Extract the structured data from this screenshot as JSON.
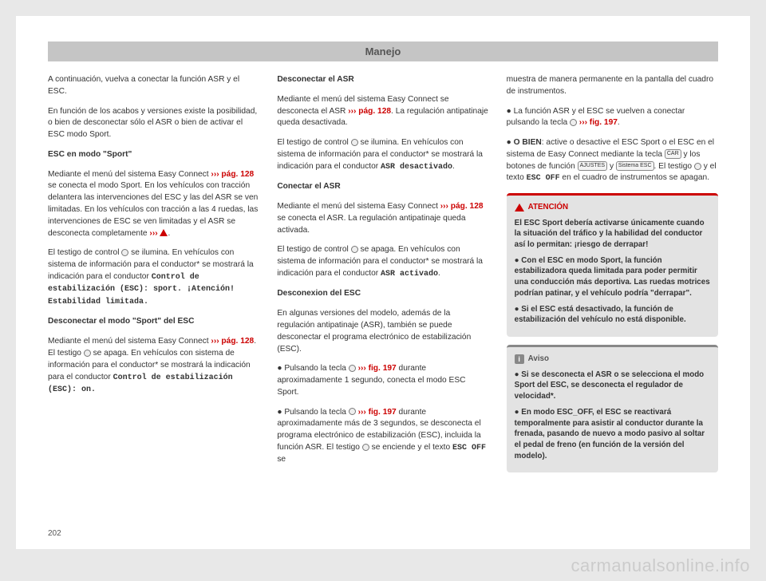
{
  "header": "Manejo",
  "pagenum": "202",
  "watermark": "carmanualsonline.info",
  "col1": {
    "p1": "A continuación, vuelva a conectar la función ASR y el ESC.",
    "p2": "En función de los acabos y versiones existe la posibilidad, o bien de desconectar sólo el ASR o bien de activar el ESC modo Sport.",
    "h1": "ESC en modo \"Sport\"",
    "p3a": "Mediante el menú del sistema Easy Connect ",
    "p3link": "››› pág. 128",
    "p3b": " se conecta el modo Sport. En los vehículos con tracción delantera las intervenciones del ESC y las del ASR se ven limitadas. En los vehículos con tracción a las 4 ruedas, las intervenciones de ESC se ven limitadas y el ASR se desconecta completamente ",
    "p3warn": "›››",
    "p3c": ".",
    "p4a": "El testigo de control ",
    "p4b": " se ilumina. En vehículos con sistema de información para el conductor* se mostrará la indicación para el conductor ",
    "p4mono": "Control de estabilización (ESC): sport. ¡Atención! Estabilidad limitada.",
    "h2": "Desconectar el modo \"Sport\" del ESC",
    "p5a": "Mediante el menú del sistema Easy Connect ",
    "p5link": "››› pág. 128",
    "p5b": ". El testigo ",
    "p5c": " se apaga. En vehículos con sistema de información para el conductor* se mostrará la indicación para el conductor ",
    "p5mono": "Control de estabilización (ESC): on."
  },
  "col2": {
    "h1": "Desconectar el ASR",
    "p1a": "Mediante el menú del sistema Easy Connect se desconecta el ASR ",
    "p1link": "››› pág. 128",
    "p1b": ". La regulación antipatinaje queda desactivada.",
    "p2a": "El testigo de control ",
    "p2b": " se ilumina. En vehículos con sistema de información para el conductor* se mostrará la indicación para el conductor ",
    "p2mono": "ASR desactivado",
    "p2c": ".",
    "h2": "Conectar el ASR",
    "p3a": "Mediante el menú del sistema Easy Connect ",
    "p3link": "››› pág. 128",
    "p3b": " se conecta el ASR. La regulación antipatinaje queda activada.",
    "p4a": "El testigo de control ",
    "p4b": " se apaga. En vehículos con sistema de información para el conductor* se mostrará la indicación para el conductor ",
    "p4mono": "ASR activado",
    "p4c": ".",
    "h3": "Desconexion del ESC",
    "p5": "En algunas versiones del modelo, además de la regulación antipatinaje (ASR), también se puede desconectar el programa electrónico de estabilización (ESC).",
    "b1a": "Pulsando la tecla ",
    "b1link": "››› fig. 197",
    "b1b": " durante aproximadamente 1 segundo, conecta el modo ESC Sport.",
    "b2a": "Pulsando la tecla ",
    "b2link": "››› fig. 197",
    "b2b": " durante aproximadamente más de 3 segundos, se desconecta el programa electrónico de estabilización (ESC), incluida la función ASR. El testigo ",
    "b2c": " se enciende y el texto ",
    "b2mono": "ESC OFF",
    "b2d": " se"
  },
  "col3": {
    "p1": "muestra de manera permanente en la pantalla del cuadro de instrumentos.",
    "b1a": "La función ASR y el ESC se vuelven a conectar pulsando la tecla ",
    "b1link": "››› fig. 197",
    "b1b": ".",
    "b2a": "O BIEN",
    "b2b": ": active o desactive el ESC Sport o el ESC en el sistema de Easy Connect mediante la tecla ",
    "btn_car": "CAR",
    "b2c": " y los botones de función ",
    "btn_aj": "AJUSTES",
    "b2d": " y ",
    "btn_esc": "Sistema ESC",
    "b2e": ". El testigo ",
    "b2f": " y el texto ",
    "b2mono": "ESC OFF",
    "b2g": " en el cuadro de instrumentos se apagan.",
    "box_red": {
      "title": "ATENCIÓN",
      "p1": "El ESC Sport debería activarse únicamente cuando la situación del tráfico y la habilidad del conductor así lo permitan: ¡riesgo de derrapar!",
      "p2": "● Con el ESC en modo Sport, la función estabilizadora queda limitada para poder permitir una conducción más deportiva. Las ruedas motrices podrían patinar, y el vehículo podría \"derrapar\".",
      "p3": "● Si el ESC está desactivado, la función de estabilización del vehículo no está disponible."
    },
    "box_grey": {
      "title": "Aviso",
      "p1": "● Si se desconecta el ASR o se selecciona el modo Sport del ESC, se desconecta el regulador de velocidad*.",
      "p2": "● En modo ESC_OFF, el ESC se reactivará temporalmente para asistir al conductor durante la frenada, pasando de nuevo a modo pasivo al soltar el pedal de freno (en función de la versión del modelo)."
    }
  }
}
